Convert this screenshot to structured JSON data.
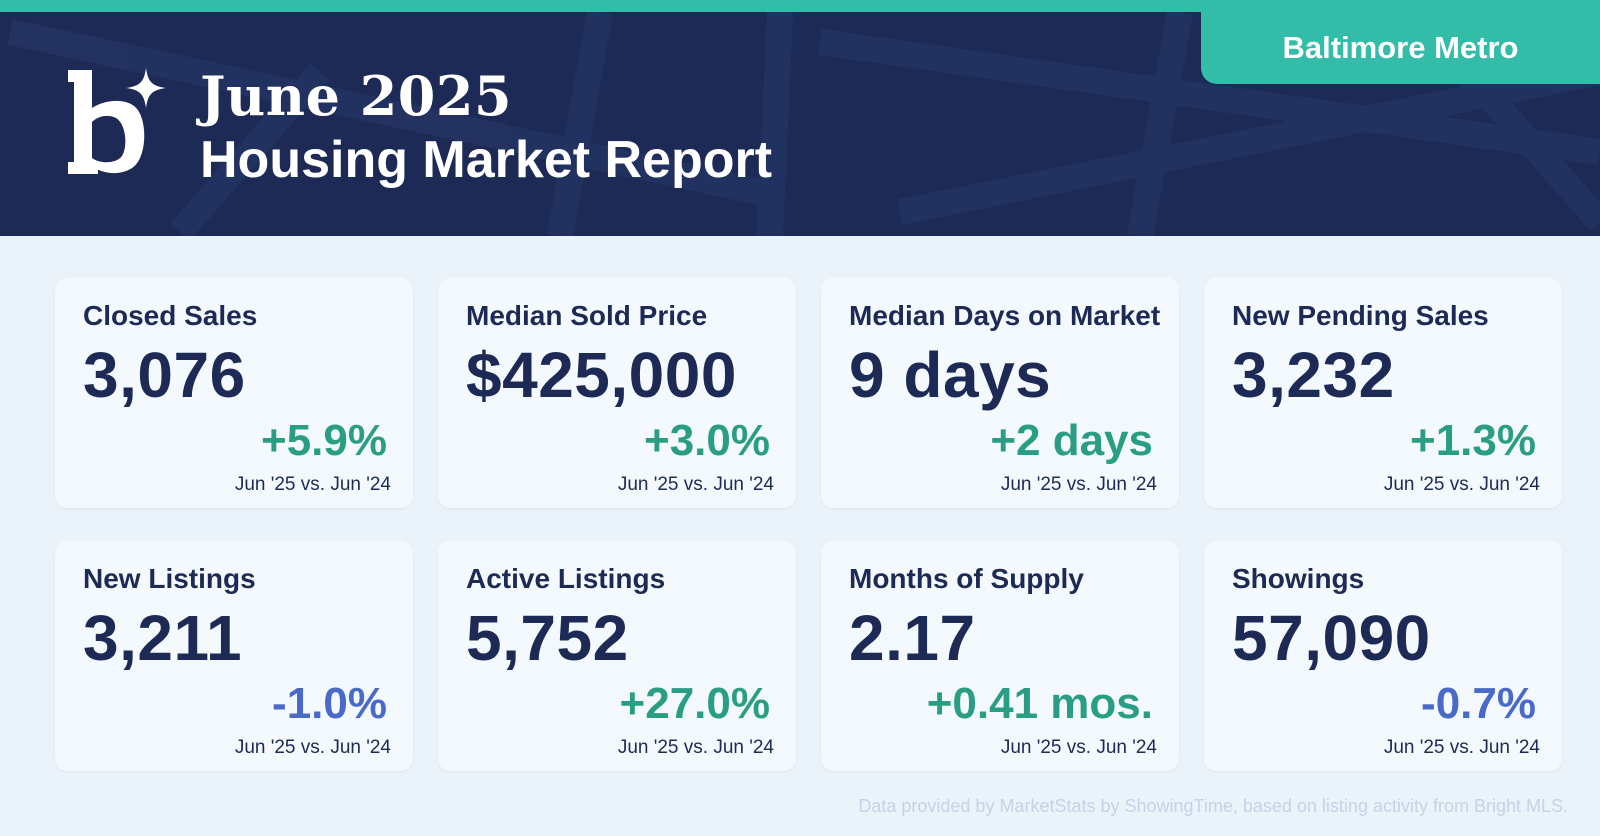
{
  "header": {
    "month": "June 2025",
    "report_title": "Housing Market Report",
    "region": "Baltimore Metro",
    "logo": "bright-mls-logo-icon"
  },
  "colors": {
    "navy": "#1c2a55",
    "teal": "#33bca8",
    "positive": "#2a9e84",
    "negative": "#4a6ac8",
    "card_bg": "#f4f9fd",
    "page_bg": "#eaf2fa"
  },
  "cards": [
    {
      "label": "Closed Sales",
      "value": "3,076",
      "change": "+5.9%",
      "direction": "up",
      "period": "Jun '25 vs. Jun '24"
    },
    {
      "label": "Median Sold Price",
      "value": "$425,000",
      "change": "+3.0%",
      "direction": "up",
      "period": "Jun '25 vs. Jun '24"
    },
    {
      "label": "Median Days on Market",
      "value": "9 days",
      "change": "+2 days",
      "direction": "up",
      "period": "Jun '25 vs. Jun '24"
    },
    {
      "label": "New Pending Sales",
      "value": "3,232",
      "change": "+1.3%",
      "direction": "up",
      "period": "Jun '25 vs. Jun '24"
    },
    {
      "label": "New Listings",
      "value": "3,211",
      "change": "-1.0%",
      "direction": "down",
      "period": "Jun '25 vs. Jun '24"
    },
    {
      "label": "Active Listings",
      "value": "5,752",
      "change": "+27.0%",
      "direction": "up",
      "period": "Jun '25 vs. Jun '24"
    },
    {
      "label": "Months of Supply",
      "value": "2.17",
      "change": "+0.41 mos.",
      "direction": "up",
      "period": "Jun '25 vs. Jun '24"
    },
    {
      "label": "Showings",
      "value": "57,090",
      "change": "-0.7%",
      "direction": "down",
      "period": "Jun '25 vs. Jun '24"
    }
  ],
  "footer": {
    "source": "Data provided by MarketStats by ShowingTime, based on listing activity from Bright MLS."
  }
}
